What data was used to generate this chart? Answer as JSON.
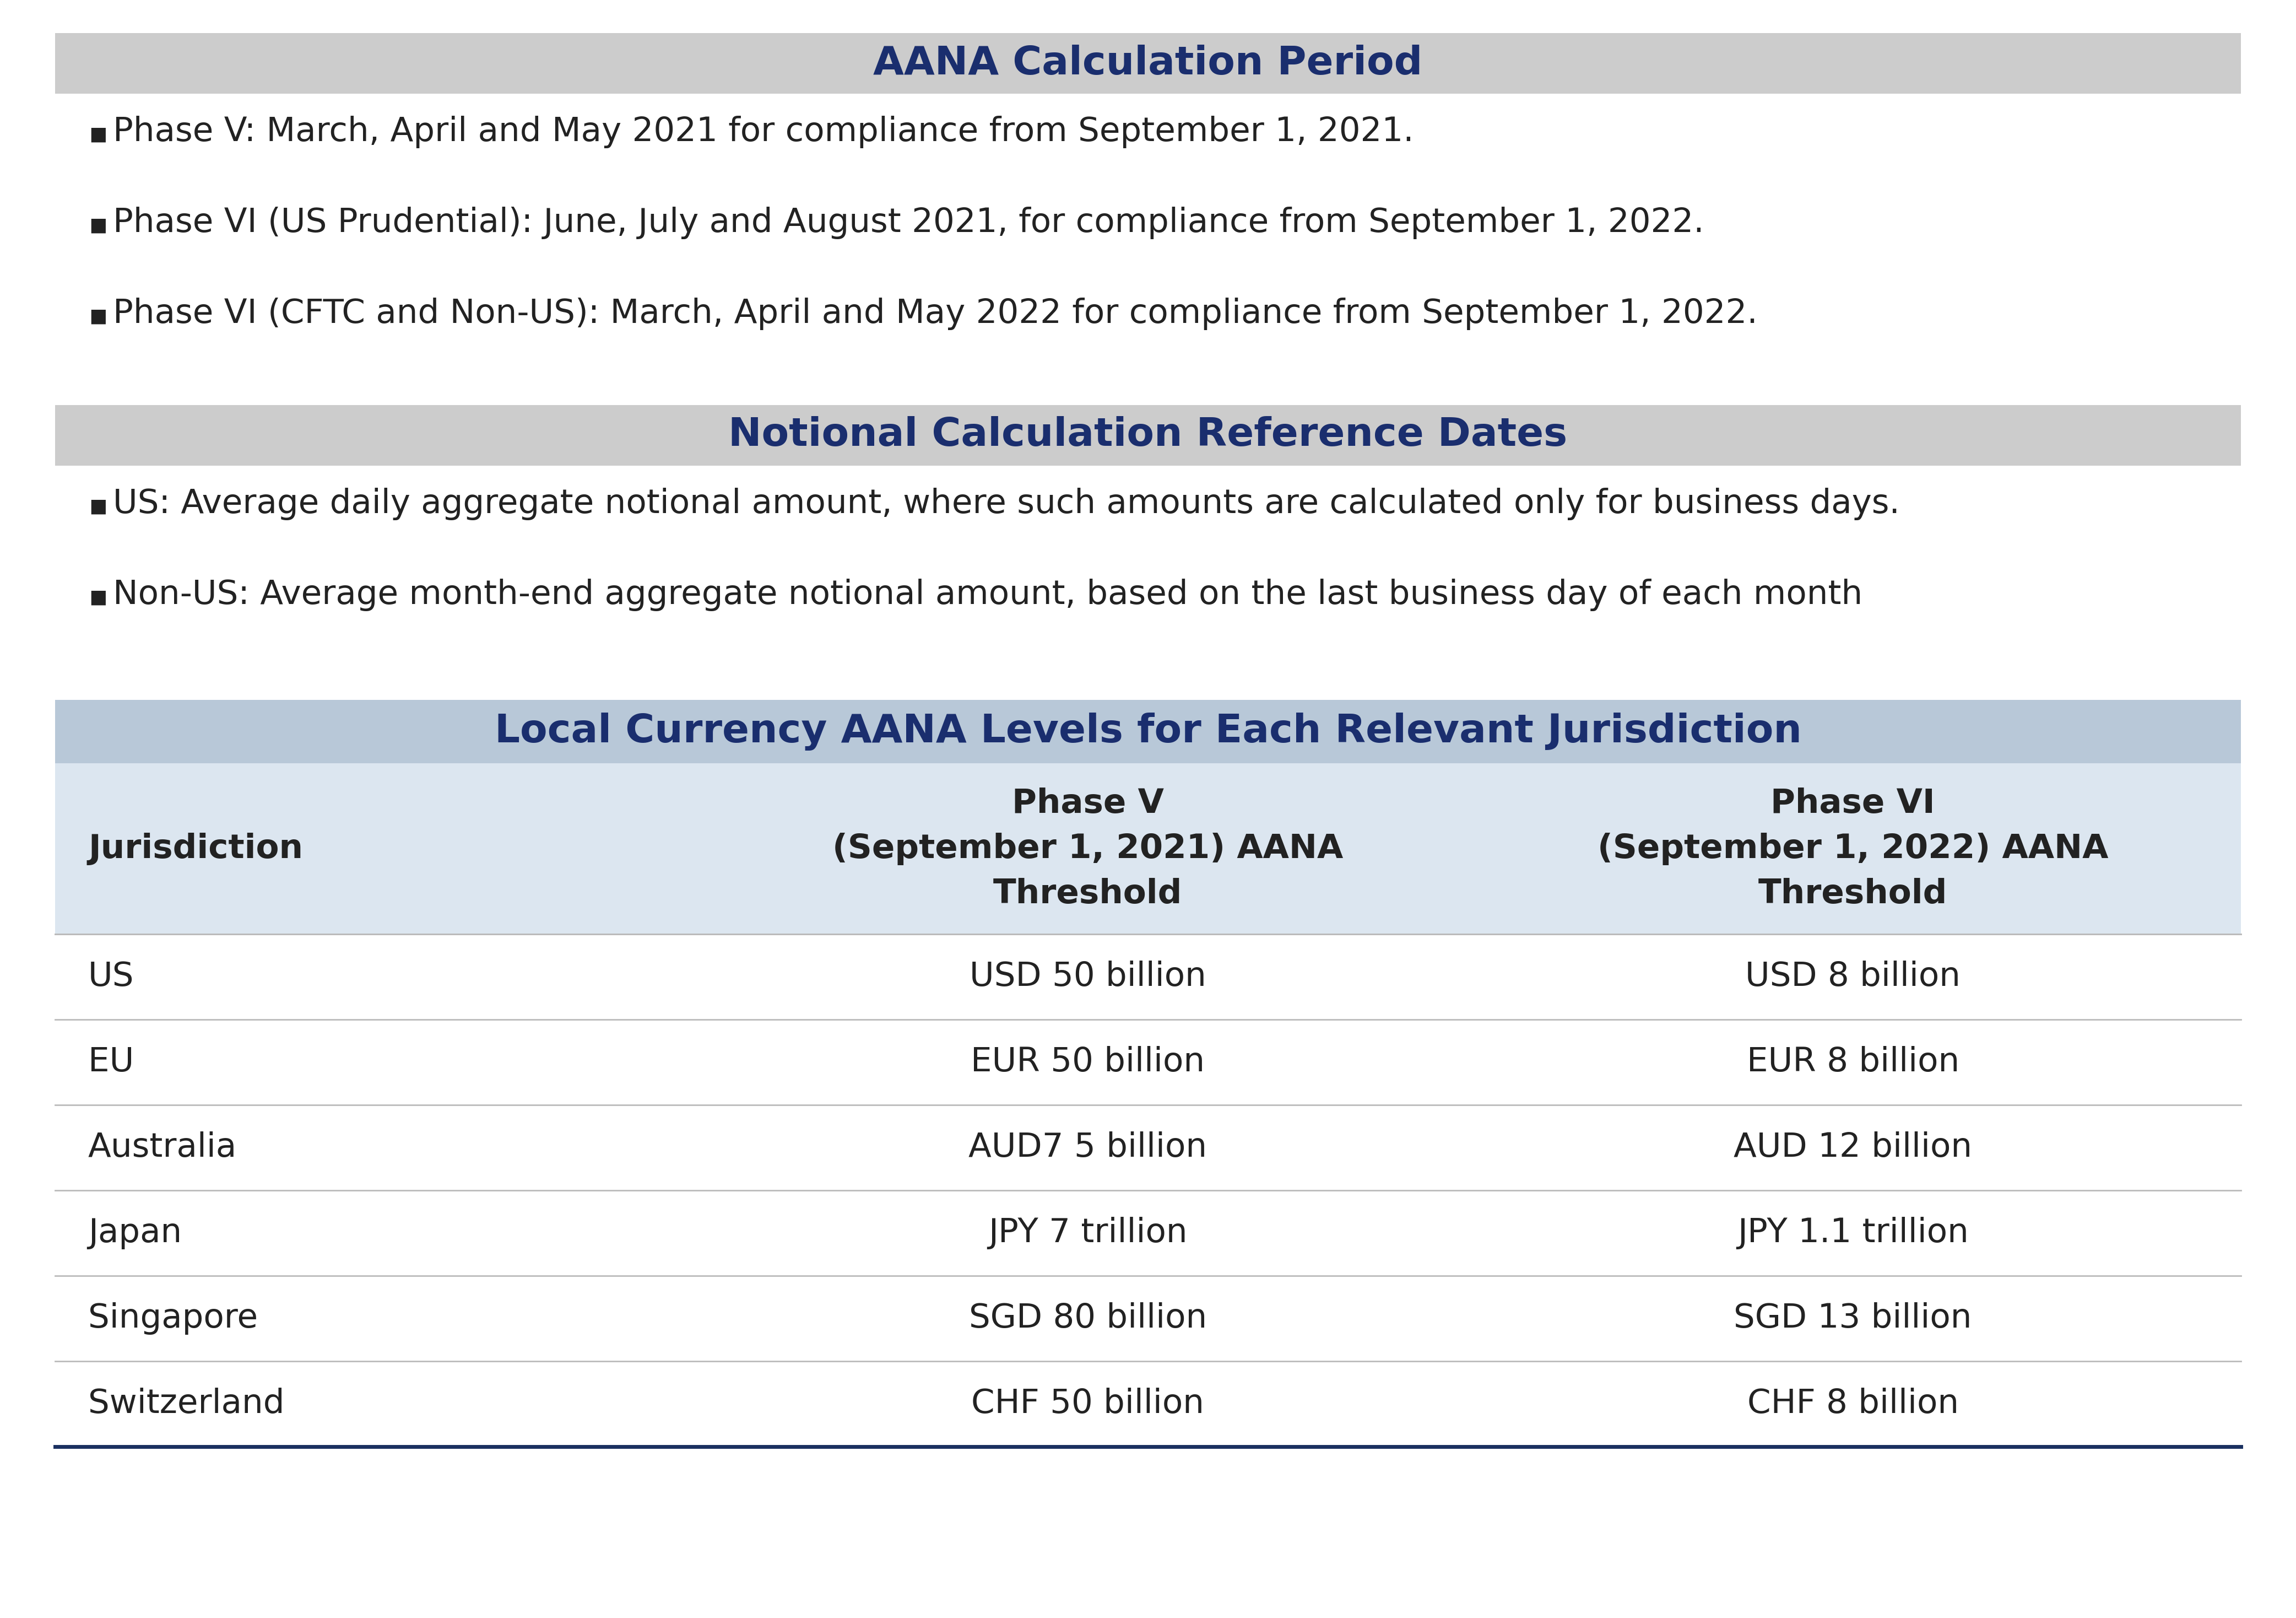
{
  "section1_title": "AANA Calculation Period",
  "section1_bullets": [
    "Phase V: March, April and May 2021 for compliance from September 1, 2021.",
    "Phase VI (US Prudential): June, July and August 2021, for compliance from September 1, 2022.",
    "Phase VI (CFTC and Non-US): March, April and May 2022 for compliance from September 1, 2022."
  ],
  "section2_title": "Notional Calculation Reference Dates",
  "section2_bullets": [
    "US: Average daily aggregate notional amount, where such amounts are calculated only for business days.",
    "Non-US: Average month-end aggregate notional amount, based on the last business day of each month"
  ],
  "table_title": "Local Currency AANA Levels for Each Relevant Jurisdiction",
  "table_col_headers": [
    "Jurisdiction",
    "Phase V\n(September 1, 2021) AANA\nThreshold",
    "Phase VI\n(September 1, 2022) AANA\nThreshold"
  ],
  "table_rows": [
    [
      "US",
      "USD 50 billion",
      "USD 8 billion"
    ],
    [
      "EU",
      "EUR 50 billion",
      "EUR 8 billion"
    ],
    [
      "Australia",
      "AUD7 5 billion",
      "AUD 12 billion"
    ],
    [
      "Japan",
      "JPY 7 trillion",
      "JPY 1.1 trillion"
    ],
    [
      "Singapore",
      "SGD 80 billion",
      "SGD 13 billion"
    ],
    [
      "Switzerland",
      "CHF 50 billion",
      "CHF 8 billion"
    ]
  ],
  "header_bg_color": "#cccccc",
  "table_header_bg_color": "#dce6f0",
  "table_title_bg_color": "#b8c8d8",
  "dark_navy": "#1a2e6e",
  "text_color": "#222222",
  "bullet_char": "▪",
  "bg_color": "#ffffff",
  "row_divider_color": "#bbbbbb",
  "bottom_border_color": "#1a3060"
}
